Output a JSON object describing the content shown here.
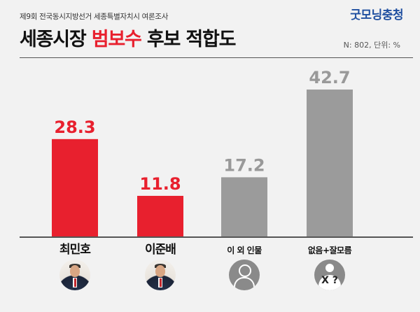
{
  "header": {
    "subtitle": "제9회 전국동시지방선거 세종특별자치시 여론조사",
    "brand": "굿모닝충청",
    "title_part1": "세종시장 ",
    "title_accent": "범보수",
    "title_part2": " 후보 적합도",
    "meta": "N: 802, 단위: %"
  },
  "colors": {
    "highlight": "#e8202e",
    "neutral": "#9b9b9b",
    "highlight_label": "#e8202e",
    "neutral_label": "#999999"
  },
  "chart_data": {
    "type": "bar",
    "title": "세종시장 범보수 후보 적합도",
    "categories": [
      "최민호",
      "이준배",
      "이 외 인물",
      "없음+잘모름"
    ],
    "values": [
      28.3,
      11.8,
      17.2,
      42.7
    ],
    "value_labels": [
      "28.3",
      "11.8",
      "17.2",
      "42.7"
    ],
    "highlighted": [
      true,
      true,
      false,
      false
    ],
    "unit": "%",
    "ylim": [
      0,
      42.7
    ],
    "grid": false,
    "legend": "none"
  },
  "avatars": [
    {
      "icon": "candidate-photo"
    },
    {
      "icon": "candidate-photo"
    },
    {
      "icon": "person-outline-icon"
    },
    {
      "icon": "unknown-person-icon",
      "mark": "X ?"
    }
  ]
}
